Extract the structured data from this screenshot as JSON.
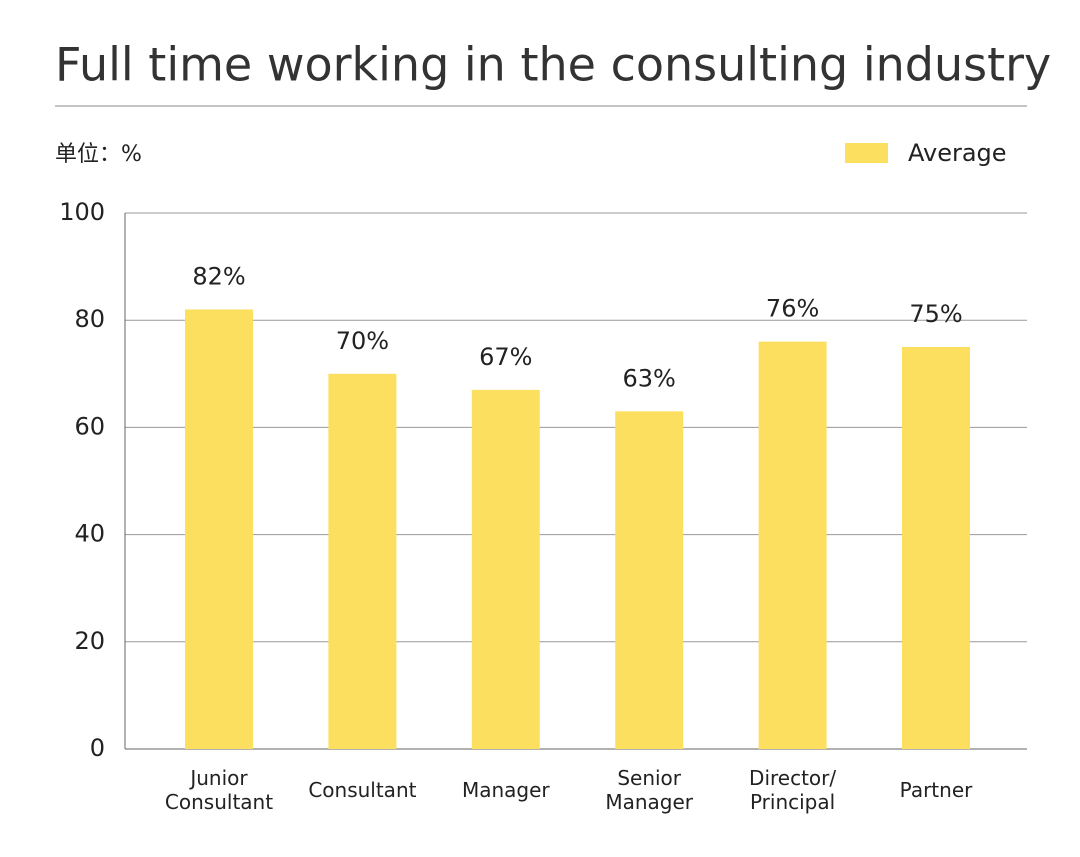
{
  "chart_data": {
    "type": "bar",
    "title": "Full time working in the consulting industry",
    "unit_label": "单位：%",
    "categories": [
      "Junior\nConsultant",
      "Consultant",
      "Manager",
      "Senior\nManager",
      "Director/\nPrincipal",
      "Partner"
    ],
    "series": [
      {
        "name": "Average",
        "color": "#fcdf5e",
        "values": [
          82,
          70,
          67,
          63,
          76,
          75
        ],
        "value_labels": [
          "82%",
          "70%",
          "67%",
          "63%",
          "76%",
          "75%"
        ]
      }
    ],
    "ylim": [
      0,
      100
    ],
    "yticks": [
      0,
      20,
      40,
      60,
      80,
      100
    ],
    "grid": true,
    "legend": "top-right"
  }
}
